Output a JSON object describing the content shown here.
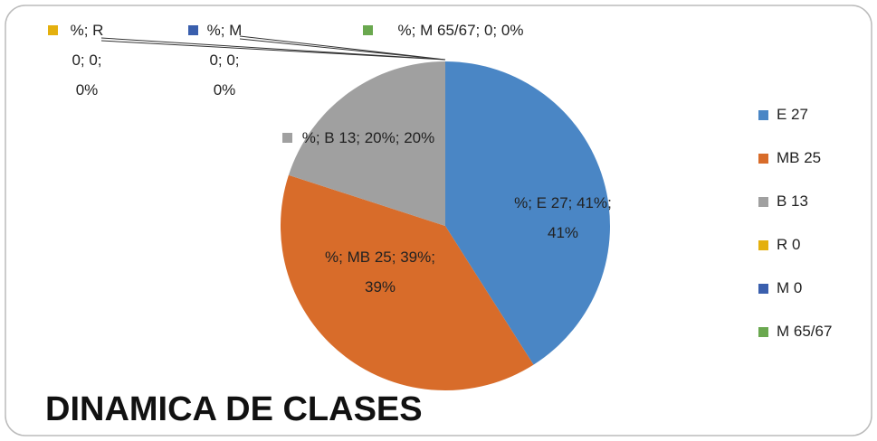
{
  "chart_data": {
    "type": "pie",
    "title": "DINAMICA DE CLASES",
    "categories": [
      "E 27",
      "MB 25",
      "B 13",
      "R 0",
      "M 0",
      "M 65/67"
    ],
    "values": [
      41,
      39,
      20,
      0,
      0,
      0
    ],
    "value_labels": [
      "%; E 27; 41%; 41%",
      "%; MB 25; 39%; 39%",
      "%; B 13; 20%; 20%",
      "%; R 0; 0; 0%",
      "%; M 0; 0; 0%",
      "%; M 65/67; 0; 0%"
    ],
    "colors": [
      "#4a86c5",
      "#d86c2a",
      "#a0a0a0",
      "#e4b00e",
      "#3a5fad",
      "#6aa84f"
    ],
    "legend": "right"
  }
}
